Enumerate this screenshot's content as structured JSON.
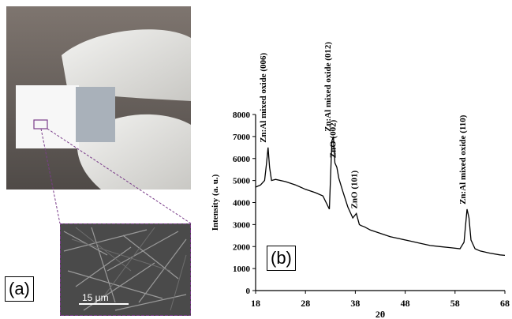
{
  "figure": {
    "panel_a_label": "(a)",
    "panel_b_label": "(b)",
    "scale_bar_label": "15 μm"
  },
  "chart_data": {
    "type": "line",
    "xlabel": "2θ",
    "ylabel": "Intensity (a. u.)",
    "xlim": [
      18,
      68
    ],
    "ylim": [
      0,
      8000
    ],
    "xticks": [
      18,
      28,
      38,
      48,
      58,
      68
    ],
    "yticks": [
      0,
      1000,
      2000,
      3000,
      4000,
      5000,
      6000,
      7000,
      8000
    ],
    "series": [
      {
        "x": [
          18,
          19,
          19.8,
          20.2,
          20.5,
          20.8,
          21.2,
          22,
          24,
          26,
          28,
          30,
          31.5,
          32.8,
          33.3,
          33.6,
          33.9,
          34.3,
          34.7,
          35.5,
          36.5,
          37.5,
          38.2,
          38.8,
          39.2,
          39.8,
          41,
          43,
          45,
          47,
          49,
          51,
          53,
          55,
          57,
          59,
          59.8,
          60.4,
          60.8,
          61.2,
          62,
          63,
          65,
          67,
          68
        ],
        "y": [
          4700,
          4800,
          5000,
          5800,
          6500,
          5600,
          5000,
          5050,
          4950,
          4800,
          4600,
          4450,
          4300,
          3700,
          6800,
          7000,
          5800,
          5600,
          5100,
          4500,
          3800,
          3300,
          3500,
          3000,
          2950,
          2900,
          2750,
          2600,
          2450,
          2350,
          2250,
          2150,
          2050,
          2000,
          1950,
          1900,
          2200,
          3700,
          3300,
          2300,
          1900,
          1800,
          1700,
          1620,
          1600
        ]
      }
    ],
    "annotations": [
      {
        "text": "Zn:Al mixed oxide (006)",
        "x": 20.5,
        "y": 6500
      },
      {
        "text": "Zn:Al mixed oxide (012)",
        "x": 33.5,
        "y": 7000
      },
      {
        "text": "ZnO (002)",
        "x": 34.5,
        "y": 5800
      },
      {
        "text": "ZnO (101)",
        "x": 38.8,
        "y": 3500
      },
      {
        "text": "Zn:Al mixed oxide (110)",
        "x": 60.6,
        "y": 3700
      }
    ]
  }
}
